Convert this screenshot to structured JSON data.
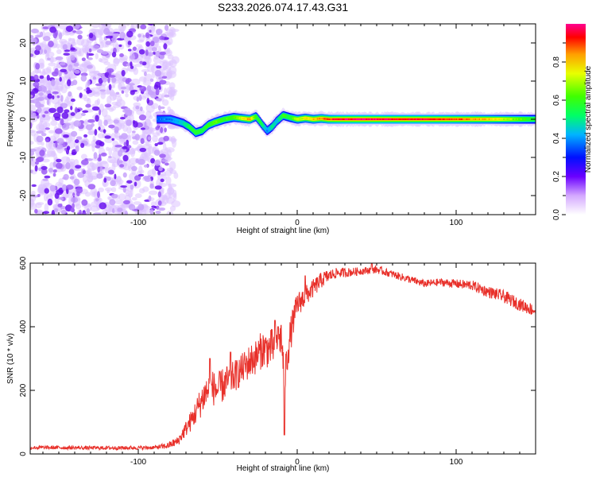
{
  "page_title": "S233.2026.074.17.43.G31",
  "chart_data": [
    {
      "type": "heatmap",
      "title": "S233.2026.074.17.43.G31",
      "xlabel": "Height of straight line (km)",
      "ylabel": "Frequency (Hz)",
      "xlim": [
        -168,
        150
      ],
      "ylim": [
        -25,
        25
      ],
      "xticks": [
        -100,
        0,
        100
      ],
      "yticks": [
        -20,
        -10,
        0,
        10,
        20
      ],
      "noise_region_x": [
        -168,
        -82
      ],
      "tone_track": {
        "x": [
          -88,
          -80,
          -72,
          -68,
          -64,
          -60,
          -56,
          -52,
          -46,
          -40,
          -36,
          -30,
          -26,
          -22,
          -19,
          -16,
          -13,
          -9,
          -5,
          0,
          5,
          10,
          15,
          20,
          25,
          40,
          60,
          80,
          100,
          120,
          150
        ],
        "freq": [
          0,
          0,
          -1,
          -2,
          -3.5,
          -3,
          -1.5,
          -0.8,
          0,
          0.5,
          0.3,
          0,
          0.7,
          -1.5,
          -3,
          -2,
          -0.5,
          1,
          0.5,
          0,
          0.3,
          0,
          0.2,
          0,
          0,
          0,
          0,
          0,
          0,
          0,
          0
        ],
        "amp": [
          0.35,
          0.4,
          0.45,
          0.55,
          0.6,
          0.55,
          0.6,
          0.65,
          0.6,
          0.62,
          0.7,
          0.85,
          0.6,
          0.5,
          0.4,
          0.5,
          0.45,
          0.6,
          0.55,
          0.7,
          0.75,
          0.8,
          0.85,
          0.9,
          0.95,
          1.0,
          0.95,
          0.95,
          0.9,
          0.8,
          0.55
        ]
      },
      "colorbar": {
        "label": "Normalized spectral amplitude",
        "range": [
          0,
          1
        ],
        "ticks": [
          0.0,
          0.2,
          0.4,
          0.6,
          0.8
        ],
        "tick_labels": [
          "0.0",
          "0.2",
          "0.4",
          "0.6",
          "0.8"
        ]
      }
    },
    {
      "type": "line",
      "xlabel": "Height of straight line (km)",
      "ylabel": "SNR (10 * v/v)",
      "xlim": [
        -168,
        150
      ],
      "ylim": [
        0,
        600
      ],
      "xticks": [
        -100,
        0,
        100
      ],
      "yticks": [
        0,
        200,
        400,
        600
      ],
      "series": [
        {
          "name": "SNR",
          "color": "#e8302a",
          "x": [
            -168,
            -150,
            -130,
            -110,
            -90,
            -82,
            -75,
            -70,
            -66,
            -62,
            -58,
            -54,
            -50,
            -46,
            -42,
            -38,
            -34,
            -30,
            -26,
            -22,
            -18,
            -14,
            -10,
            -8,
            -6,
            -4,
            -2,
            0,
            4,
            8,
            12,
            16,
            20,
            25,
            30,
            40,
            50,
            60,
            70,
            80,
            90,
            100,
            110,
            120,
            130,
            140,
            150
          ],
          "values": [
            20,
            20,
            19,
            19,
            20,
            25,
            40,
            80,
            110,
            150,
            190,
            210,
            200,
            220,
            235,
            250,
            270,
            290,
            305,
            330,
            330,
            340,
            370,
            230,
            320,
            380,
            430,
            470,
            490,
            510,
            530,
            550,
            560,
            570,
            570,
            575,
            580,
            565,
            550,
            535,
            540,
            535,
            530,
            510,
            495,
            470,
            450
          ],
          "noise_amp": [
            6,
            6,
            6,
            6,
            6,
            10,
            15,
            25,
            35,
            45,
            55,
            55,
            55,
            55,
            50,
            50,
            50,
            55,
            55,
            60,
            60,
            60,
            60,
            60,
            60,
            55,
            45,
            40,
            35,
            30,
            28,
            25,
            20,
            15,
            15,
            12,
            12,
            12,
            12,
            12,
            12,
            14,
            16,
            18,
            20,
            20,
            20
          ],
          "spikes": [
            [
              -55,
              300
            ],
            [
              -8,
              60
            ],
            [
              -12,
              400
            ],
            [
              -14,
              420
            ],
            [
              -42,
              320
            ],
            [
              5,
              560
            ],
            [
              47,
              600
            ]
          ]
        }
      ]
    }
  ]
}
